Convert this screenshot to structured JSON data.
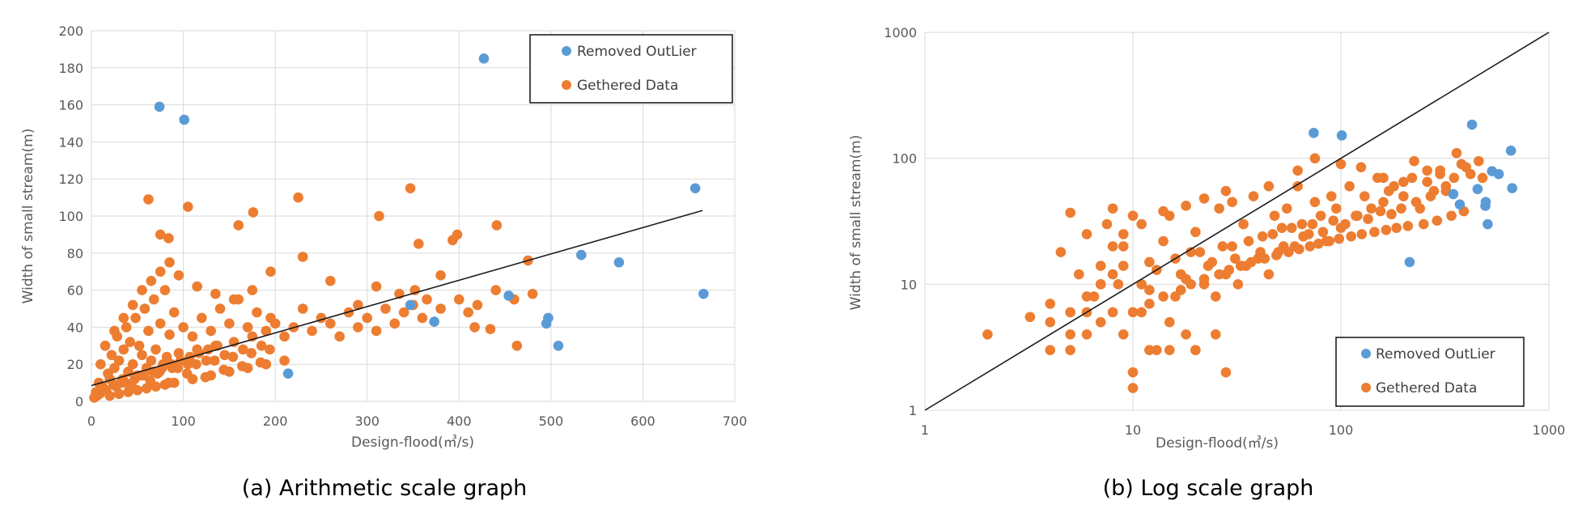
{
  "chart_data": [
    {
      "type": "scatter",
      "caption": "(a) Arithmetic scale graph",
      "xlabel": "Design-flood(㎥/s)",
      "ylabel": "Width of small stream(m)",
      "xscale": "linear",
      "yscale": "linear",
      "xlim": [
        0,
        700
      ],
      "ylim": [
        0,
        200
      ],
      "xticks": [
        0,
        100,
        200,
        300,
        400,
        500,
        600,
        700
      ],
      "yticks": [
        0,
        20,
        40,
        60,
        80,
        100,
        120,
        140,
        160,
        180,
        200
      ],
      "xtick_labels": [
        "0",
        "100",
        "200",
        "300",
        "400",
        "500",
        "600",
        "700"
      ],
      "ytick_labels": [
        "0",
        "20",
        "40",
        "60",
        "80",
        "100",
        "120",
        "140",
        "160",
        "180",
        "200"
      ],
      "grid": true,
      "legend_position": "top-right",
      "series": [
        {
          "name": "Removed OutLier",
          "color": "#5b9bd5",
          "x": [
            74,
            101,
            427,
            657,
            666,
            533,
            574,
            347,
            373,
            454,
            497,
            508,
            495,
            214
          ],
          "y": [
            159,
            152,
            185,
            115,
            58,
            79,
            75,
            52,
            43,
            57,
            45,
            30,
            42,
            15
          ]
        },
        {
          "name": "Gethered Data",
          "color": "#ed7d31",
          "x": [
            5,
            8,
            10,
            12,
            15,
            18,
            20,
            22,
            25,
            28,
            30,
            32,
            35,
            38,
            40,
            42,
            45,
            48,
            50,
            52,
            55,
            58,
            60,
            62,
            65,
            68,
            70,
            72,
            75,
            78,
            80,
            82,
            85,
            88,
            90,
            95,
            100,
            105,
            110,
            115,
            120,
            125,
            130,
            135,
            140,
            145,
            150,
            155,
            160,
            165,
            170,
            175,
            180,
            185,
            190,
            195,
            200,
            210,
            220,
            230,
            240,
            250,
            260,
            270,
            280,
            290,
            300,
            310,
            320,
            330,
            340,
            350,
            360,
            380,
            400,
            410,
            420,
            440,
            460,
            480,
            6,
            14,
            24,
            34,
            44,
            54,
            64,
            74,
            84,
            94,
            104,
            114,
            124,
            134,
            144,
            154,
            164,
            174,
            184,
            194,
            62,
            75,
            84,
            105,
            160,
            176,
            225,
            347,
            313,
            398,
            441,
            475,
            356,
            434,
            463,
            393,
            417,
            380,
            365,
            352,
            230,
            260,
            290,
            310,
            335,
            20,
            30,
            40,
            50,
            60,
            70,
            80,
            90,
            110,
            130,
            150,
            170,
            190,
            210,
            15,
            25,
            35,
            45,
            55,
            65,
            75,
            85,
            95,
            115,
            135,
            155,
            175,
            195,
            3,
            9,
            16,
            27,
            37,
            47,
            57,
            67,
            77,
            87,
            97,
            107,
            117,
            127,
            137
          ],
          "y": [
            5,
            10,
            20,
            8,
            30,
            15,
            12,
            25,
            18,
            35,
            22,
            10,
            28,
            40,
            16,
            32,
            20,
            45,
            14,
            30,
            25,
            50,
            18,
            38,
            22,
            55,
            28,
            15,
            42,
            20,
            60,
            24,
            36,
            18,
            48,
            26,
            40,
            20,
            35,
            28,
            45,
            22,
            38,
            30,
            50,
            25,
            42,
            32,
            55,
            28,
            40,
            35,
            48,
            30,
            38,
            45,
            42,
            35,
            40,
            50,
            38,
            45,
            42,
            35,
            48,
            40,
            45,
            38,
            50,
            42,
            48,
            52,
            45,
            50,
            55,
            48,
            52,
            60,
            55,
            58,
            3,
            6,
            9,
            12,
            8,
            14,
            11,
            16,
            10,
            18,
            15,
            20,
            13,
            22,
            17,
            24,
            19,
            26,
            21,
            28,
            109,
            90,
            88,
            105,
            95,
            102,
            110,
            115,
            100,
            90,
            95,
            76,
            85,
            39,
            30,
            87,
            40,
            68,
            55,
            60,
            78,
            65,
            52,
            62,
            58,
            3,
            4,
            5,
            6,
            7,
            8,
            9,
            10,
            12,
            14,
            16,
            18,
            20,
            22,
            30,
            38,
            45,
            52,
            60,
            65,
            70,
            75,
            68,
            62,
            58,
            55,
            60,
            70,
            2,
            4,
            6,
            8,
            10,
            12,
            14,
            16,
            18,
            20,
            22,
            24,
            26,
            28,
            30
          ]
        }
      ],
      "trendline": {
        "x": [
          0,
          665
        ],
        "y": [
          8.5,
          103
        ]
      }
    },
    {
      "type": "scatter",
      "caption": "(b) Log scale graph",
      "xlabel": "Design-flood(㎥/s)",
      "ylabel": "Width of small stream(m)",
      "xscale": "log",
      "yscale": "log",
      "xlim": [
        1,
        1000
      ],
      "ylim": [
        1,
        1000
      ],
      "xticks": [
        1,
        10,
        100,
        1000
      ],
      "yticks": [
        1,
        10,
        100,
        1000
      ],
      "xtick_labels": [
        "1",
        "10",
        "100",
        "1000"
      ],
      "ytick_labels": [
        "1",
        "10",
        "100",
        "1000"
      ],
      "grid": true,
      "legend_position": "bottom-right",
      "series": [
        {
          "name": "Removed OutLier",
          "color": "#5b9bd5",
          "x": [
            74,
            101,
            427,
            657,
            666,
            533,
            574,
            347,
            373,
            454,
            497,
            508,
            495,
            214
          ],
          "y": [
            159,
            152,
            185,
            115,
            58,
            79,
            75,
            52,
            43,
            57,
            45,
            30,
            42,
            15
          ]
        },
        {
          "name": "Gethered Data",
          "color": "#ed7d31",
          "x": [
            2,
            3.2,
            4,
            4,
            4,
            4.5,
            5,
            5,
            5,
            5.5,
            6,
            6,
            6.5,
            7,
            7,
            7.5,
            8,
            8,
            8.5,
            9,
            9,
            10,
            10,
            10,
            11,
            12,
            12,
            13,
            14,
            15,
            15,
            16,
            17,
            18,
            19,
            20,
            20,
            22,
            24,
            25,
            26,
            28,
            28,
            30,
            32,
            34,
            35,
            38,
            40,
            42,
            45,
            48,
            50,
            52,
            55,
            60,
            62,
            65,
            70,
            75,
            80,
            85,
            90,
            95,
            100,
            110,
            120,
            130,
            140,
            150,
            160,
            170,
            180,
            200,
            220,
            240,
            260,
            280,
            300,
            320,
            350,
            380,
            400,
            420,
            460,
            480,
            6,
            7,
            8,
            9,
            11,
            13,
            16,
            18,
            21,
            23,
            27,
            31,
            36,
            41,
            47,
            53,
            58,
            66,
            73,
            82,
            92,
            105,
            118,
            135,
            155,
            175,
            195,
            230,
            270,
            320,
            10,
            12,
            14,
            17,
            19,
            22,
            26,
            29,
            33,
            37,
            43,
            49,
            56,
            63,
            71,
            78,
            88,
            98,
            112,
            126,
            145,
            165,
            185,
            210,
            250,
            290,
            340,
            390,
            30,
            45,
            62,
            75,
            100,
            125,
            160,
            200,
            225,
            260,
            300,
            360,
            8,
            9,
            11,
            14,
            18,
            22,
            28,
            12,
            15,
            20,
            25,
            5,
            6,
            7
          ],
          "y": [
            4,
            5.5,
            3,
            5,
            7,
            18,
            37,
            3,
            6,
            12,
            25,
            4,
            8,
            14,
            5,
            30,
            40,
            6,
            10,
            4,
            20,
            2,
            1.5,
            35,
            6,
            9,
            15,
            3,
            22,
            5,
            35,
            8,
            12,
            4,
            18,
            3,
            26,
            10,
            15,
            8,
            40,
            12,
            2,
            20,
            10,
            30,
            14,
            50,
            16,
            24,
            12,
            35,
            18,
            28,
            40,
            20,
            60,
            30,
            25,
            45,
            35,
            22,
            50,
            40,
            28,
            60,
            35,
            50,
            40,
            70,
            45,
            55,
            60,
            50,
            70,
            40,
            65,
            55,
            80,
            60,
            70,
            90,
            85,
            75,
            95,
            70,
            8,
            10,
            12,
            14,
            10,
            13,
            16,
            11,
            18,
            14,
            20,
            16,
            22,
            18,
            25,
            20,
            28,
            24,
            30,
            26,
            32,
            30,
            35,
            33,
            38,
            36,
            40,
            45,
            50,
            55,
            6,
            7,
            8,
            9,
            10,
            11,
            12,
            13,
            14,
            15,
            16,
            17,
            18,
            19,
            20,
            21,
            22,
            23,
            24,
            25,
            26,
            27,
            28,
            29,
            30,
            32,
            35,
            38,
            45,
            60,
            80,
            100,
            90,
            85,
            70,
            65,
            95,
            80,
            75,
            110,
            20,
            25,
            30,
            38,
            42,
            48,
            55,
            3,
            3,
            3,
            4,
            4,
            6,
            10
          ]
        }
      ],
      "trendline": {
        "x": [
          1,
          1000
        ],
        "y": [
          1,
          1000
        ]
      }
    }
  ]
}
